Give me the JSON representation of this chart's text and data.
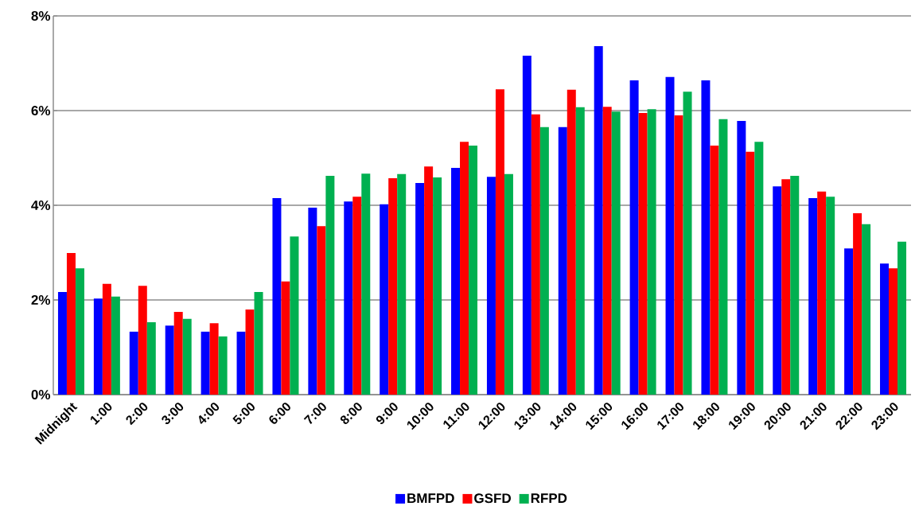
{
  "chart_data": {
    "type": "bar",
    "categories": [
      "Midnight",
      "1:00",
      "2:00",
      "3:00",
      "4:00",
      "5:00",
      "6:00",
      "7:00",
      "8:00",
      "9:00",
      "10:00",
      "11:00",
      "12:00",
      "13:00",
      "14:00",
      "15:00",
      "16:00",
      "17:00",
      "18:00",
      "19:00",
      "20:00",
      "21:00",
      "22:00",
      "23:00"
    ],
    "series": [
      {
        "name": "BMFPD",
        "color": "#0000ff",
        "values": [
          2.17,
          2.03,
          1.33,
          1.46,
          1.33,
          1.33,
          4.15,
          3.95,
          4.08,
          4.02,
          4.47,
          4.79,
          4.6,
          7.16,
          5.65,
          7.36,
          6.64,
          6.71,
          6.64,
          5.78,
          4.4,
          4.15,
          3.09,
          2.77
        ]
      },
      {
        "name": "GSFD",
        "color": "#ff0000",
        "values": [
          2.99,
          2.34,
          2.3,
          1.75,
          1.51,
          1.8,
          2.39,
          3.56,
          4.18,
          4.57,
          4.82,
          5.34,
          6.45,
          5.92,
          6.44,
          6.08,
          5.95,
          5.9,
          5.26,
          5.13,
          4.55,
          4.29,
          3.83,
          2.67
        ]
      },
      {
        "name": "RFPD",
        "color": "#00b050",
        "values": [
          2.67,
          2.07,
          1.53,
          1.6,
          1.23,
          2.17,
          3.34,
          4.62,
          4.67,
          4.66,
          4.59,
          5.26,
          4.66,
          5.65,
          6.07,
          5.98,
          6.03,
          6.4,
          5.82,
          5.34,
          4.62,
          4.18,
          3.6,
          3.23
        ]
      }
    ],
    "ylim": [
      0,
      8
    ],
    "yticks": [
      {
        "value": 0,
        "label": "0%"
      },
      {
        "value": 2,
        "label": "2%"
      },
      {
        "value": 4,
        "label": "4%"
      },
      {
        "value": 6,
        "label": "6%"
      },
      {
        "value": 8,
        "label": "8%"
      }
    ],
    "grid": "y",
    "legend": "bottom"
  }
}
